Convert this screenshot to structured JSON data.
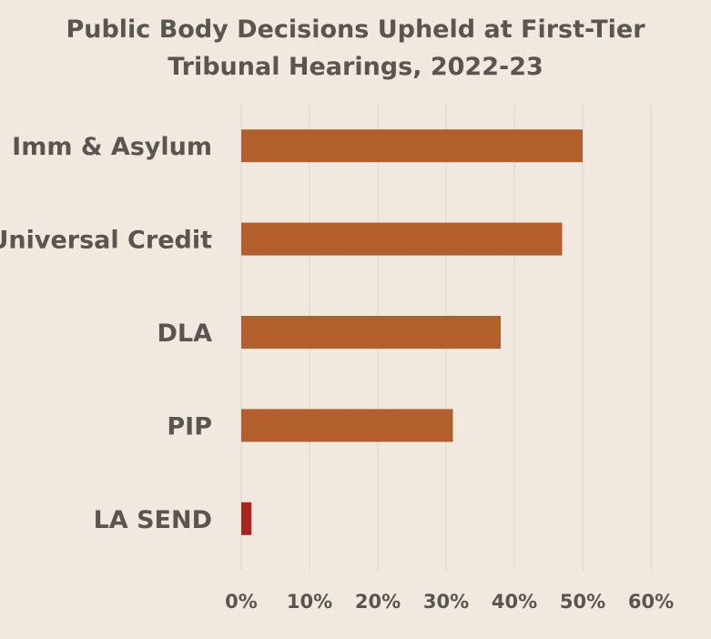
{
  "chart_data": {
    "type": "bar",
    "orientation": "horizontal",
    "title_lines": [
      "Public Body Decisions Upheld at First-Tier",
      "Tribunal Hearings, 2022-23"
    ],
    "categories": [
      "Imm & Asylum",
      "Universal Credit",
      "DLA",
      "PIP",
      "LA SEND"
    ],
    "values": [
      50,
      47,
      38,
      31,
      1.5
    ],
    "bar_colors": [
      "#b35f2c",
      "#b35f2c",
      "#b35f2c",
      "#b35f2c",
      "#a8261f"
    ],
    "xlim": [
      0,
      60
    ],
    "xticks": [
      "0%",
      "10%",
      "20%",
      "30%",
      "40%",
      "50%",
      "60%"
    ],
    "xlabel": "",
    "ylabel": "",
    "grid": "vertical",
    "legend": "none"
  },
  "colors": {
    "background": "#f1e9df",
    "text": "#5a5550",
    "grid": "#ddd5cb"
  }
}
